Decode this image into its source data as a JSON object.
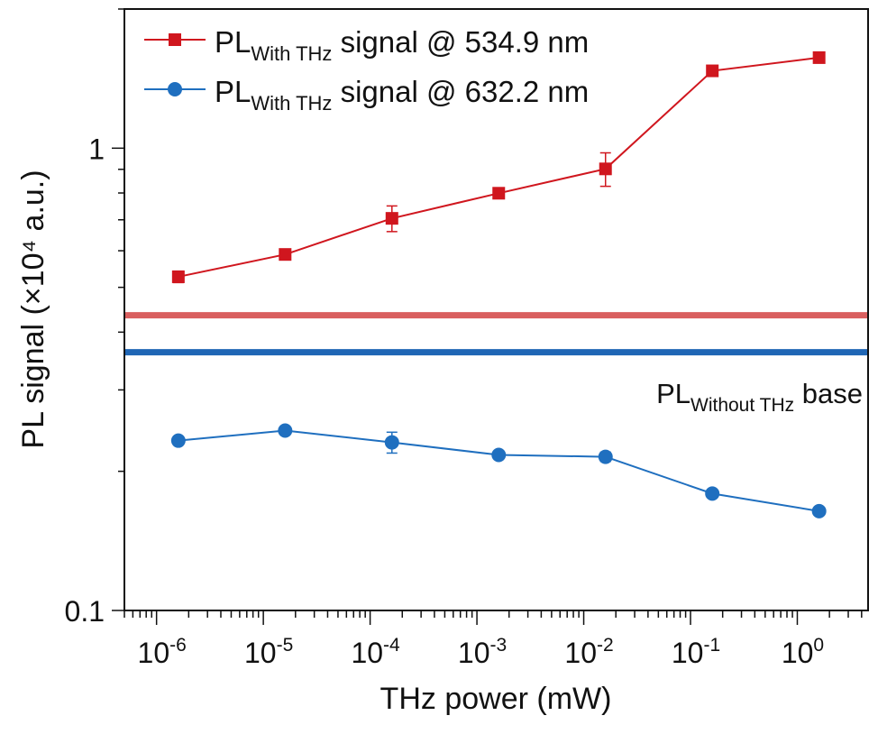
{
  "chart_data": {
    "type": "line",
    "title": "",
    "xlabel": "THz power (mW)",
    "ylabel": "PL signal (×10⁴ a.u.)",
    "xscale": "log",
    "yscale": "log",
    "xlim": [
      5e-07,
      4.6
    ],
    "ylim": [
      0.1,
      2.0
    ],
    "x_ticks": [
      {
        "value": 1e-06,
        "base": "10",
        "exp": "-6"
      },
      {
        "value": 1e-05,
        "base": "10",
        "exp": "-5"
      },
      {
        "value": 0.0001,
        "base": "10",
        "exp": "-4"
      },
      {
        "value": 0.001,
        "base": "10",
        "exp": "-3"
      },
      {
        "value": 0.01,
        "base": "10",
        "exp": "-2"
      },
      {
        "value": 0.1,
        "base": "10",
        "exp": "-1"
      },
      {
        "value": 1,
        "base": "10",
        "exp": "0"
      }
    ],
    "y_ticks": [
      {
        "value": 0.1,
        "label": "0.1"
      },
      {
        "value": 1,
        "label": "1"
      }
    ],
    "grid": false,
    "legend_placement": "top-left",
    "x": [
      1.6e-06,
      1.6e-05,
      0.00016,
      0.0016,
      0.016,
      0.16,
      1.6
    ],
    "series": [
      {
        "name_main": "PL",
        "name_sub": "With THz",
        "name_rest": " signal @ 534.9 nm",
        "color": "#d0161e",
        "marker": "square",
        "values": [
          0.527,
          0.589,
          0.705,
          0.799,
          0.902,
          1.47,
          1.57
        ],
        "errors": [
          0.015,
          0.005,
          0.045,
          0.01,
          0.075,
          0.01,
          0.01
        ]
      },
      {
        "name_main": "PL",
        "name_sub": "With THz",
        "name_rest": " signal @ 632.2 nm",
        "color": "#1f6fbf",
        "marker": "circle",
        "values": [
          0.233,
          0.245,
          0.231,
          0.217,
          0.215,
          0.179,
          0.164
        ],
        "errors": [
          0.004,
          0.004,
          0.012,
          0.003,
          0.005,
          0.002,
          0.002
        ]
      }
    ],
    "baselines": [
      {
        "value": 0.435,
        "color": "#d95f5f"
      },
      {
        "value": 0.362,
        "color": "#1f66b5"
      }
    ],
    "annotation": {
      "main": "PL",
      "sub": "Without THz",
      "rest": " base"
    }
  }
}
